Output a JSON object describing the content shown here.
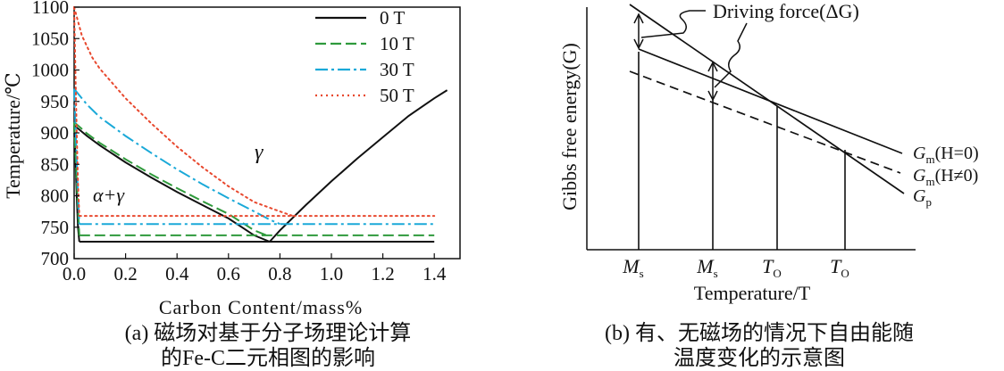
{
  "chart_data": [
    {
      "type": "line",
      "panel": "a",
      "xlabel": "Carbon Content/mass%",
      "ylabel": "Temperature/℃",
      "xlim": [
        0.0,
        1.5
      ],
      "ylim": [
        700,
        1100
      ],
      "xticks": [
        "0.0",
        "0.2",
        "0.4",
        "0.6",
        "0.8",
        "1.0",
        "1.2",
        "1.4"
      ],
      "yticks": [
        "700",
        "750",
        "800",
        "850",
        "900",
        "950",
        "1000",
        "1050",
        "1100"
      ],
      "legend_position": "top-right",
      "region_labels": {
        "gamma": "γ",
        "alpha_gamma": "α+γ"
      },
      "series": [
        {
          "name": "0 T",
          "color": "#111111",
          "style": "solid",
          "curves": [
            [
              [
                0.0,
                912
              ],
              [
                0.05,
                895
              ],
              [
                0.1,
                880
              ],
              [
                0.2,
                853
              ],
              [
                0.3,
                829
              ],
              [
                0.4,
                806
              ],
              [
                0.5,
                785
              ],
              [
                0.6,
                764
              ],
              [
                0.7,
                737
              ],
              [
                0.76,
                727
              ]
            ],
            [
              [
                0.76,
                727
              ],
              [
                0.8,
                745
              ],
              [
                0.9,
                785
              ],
              [
                1.0,
                823
              ],
              [
                1.1,
                859
              ],
              [
                1.2,
                893
              ],
              [
                1.3,
                927
              ],
              [
                1.4,
                955
              ],
              [
                1.45,
                968
              ]
            ],
            [
              [
                0.0,
                912
              ],
              [
                0.005,
                860
              ],
              [
                0.01,
                800
              ],
              [
                0.015,
                750
              ],
              [
                0.02,
                727
              ]
            ],
            [
              [
                0.02,
                727
              ],
              [
                1.4,
                727
              ]
            ]
          ]
        },
        {
          "name": "10 T",
          "color": "#2f9a3c",
          "style": "dashed",
          "curves": [
            [
              [
                0.0,
                917
              ],
              [
                0.05,
                899
              ],
              [
                0.1,
                884
              ],
              [
                0.2,
                858
              ],
              [
                0.3,
                834
              ],
              [
                0.4,
                812
              ],
              [
                0.5,
                791
              ],
              [
                0.6,
                771
              ],
              [
                0.7,
                745
              ],
              [
                0.76,
                735
              ]
            ],
            [
              [
                0.0,
                917
              ],
              [
                0.007,
                850
              ],
              [
                0.015,
                780
              ],
              [
                0.02,
                737
              ]
            ],
            [
              [
                0.02,
                737
              ],
              [
                1.4,
                737
              ]
            ]
          ]
        },
        {
          "name": "30 T",
          "color": "#1aa9d8",
          "style": "dashdot",
          "curves": [
            [
              [
                0.0,
                970
              ],
              [
                0.05,
                945
              ],
              [
                0.1,
                925
              ],
              [
                0.2,
                895
              ],
              [
                0.3,
                868
              ],
              [
                0.4,
                842
              ],
              [
                0.5,
                818
              ],
              [
                0.6,
                796
              ],
              [
                0.7,
                775
              ],
              [
                0.76,
                762
              ],
              [
                0.8,
                755
              ]
            ],
            [
              [
                0.0,
                970
              ],
              [
                0.008,
                880
              ],
              [
                0.015,
                800
              ],
              [
                0.02,
                755
              ]
            ],
            [
              [
                0.02,
                755
              ],
              [
                1.4,
                755
              ]
            ]
          ]
        },
        {
          "name": "50 T",
          "color": "#e8482e",
          "style": "dotted",
          "curves": [
            [
              [
                0.0,
                1100
              ],
              [
                0.03,
                1055
              ],
              [
                0.07,
                1020
              ],
              [
                0.1,
                1002
              ],
              [
                0.2,
                955
              ],
              [
                0.3,
                915
              ],
              [
                0.4,
                878
              ],
              [
                0.5,
                845
              ],
              [
                0.6,
                815
              ],
              [
                0.7,
                790
              ],
              [
                0.8,
                775
              ],
              [
                0.85,
                768
              ]
            ],
            [
              [
                0.0,
                1100
              ],
              [
                0.005,
                1000
              ],
              [
                0.01,
                900
              ],
              [
                0.015,
                820
              ],
              [
                0.02,
                768
              ]
            ],
            [
              [
                0.02,
                768
              ],
              [
                1.4,
                768
              ]
            ]
          ]
        }
      ]
    },
    {
      "type": "line",
      "panel": "b",
      "xlabel": "Temperature/T",
      "ylabel": "Gibbs free energy(G)",
      "annotation": "Driving force(ΔG)",
      "x_markers": [
        {
          "main": "M",
          "sub": "s"
        },
        {
          "main": "M",
          "sub": "s"
        },
        {
          "main": "T",
          "sub": "O"
        },
        {
          "main": "T",
          "sub": "O"
        }
      ],
      "line_labels": [
        {
          "main": "G",
          "sub": "m",
          "rest": "(H=0)"
        },
        {
          "main": "G",
          "sub": "m",
          "rest": "(H≠0)"
        },
        {
          "main": "G",
          "sub": "p",
          "rest": ""
        }
      ]
    }
  ],
  "captions": {
    "a_line1": "(a) 磁场对基于分子场理论计算",
    "a_line2": "的Fe-C二元相图的影响",
    "b_line1": "(b) 有、无磁场的情况下自由能随",
    "b_line2": "温度变化的示意图"
  }
}
